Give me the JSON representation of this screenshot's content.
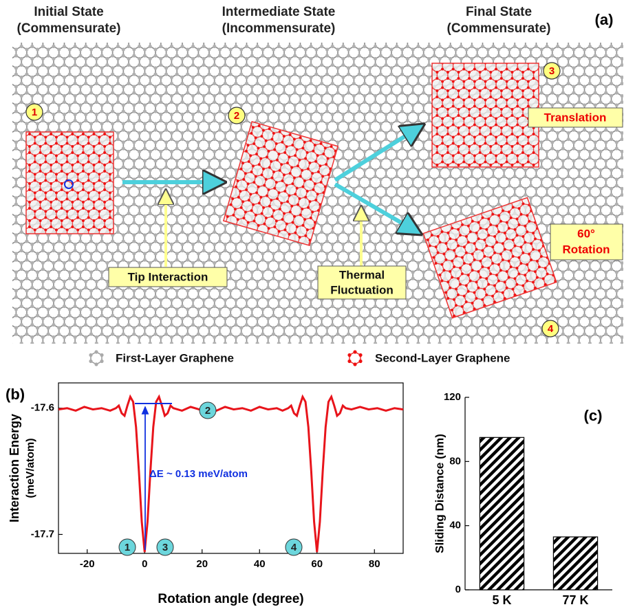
{
  "diagram": {
    "panel_label": "(a)",
    "states": [
      {
        "title": "Initial State",
        "subtitle": "(Commensurate)"
      },
      {
        "title": "Intermediate State",
        "subtitle": "(Incommensurate)"
      },
      {
        "title": "Final State",
        "subtitle": "(Commensurate)"
      }
    ],
    "markers": [
      "1",
      "2",
      "3",
      "4"
    ],
    "tip_label": "Tip Interaction",
    "thermal_label": [
      "Thermal",
      "Fluctuation"
    ],
    "translation_label": "Translation",
    "rotation_label": [
      "60°",
      "Rotation"
    ],
    "legend": [
      "First-Layer Graphene",
      "Second-Layer Graphene"
    ]
  },
  "chart_data": [
    {
      "type": "line",
      "panel_label": "(b)",
      "xlabel": "Rotation angle (degree)",
      "ylabel": [
        "Interaction Energy",
        "(meV/atom)"
      ],
      "x": [
        -30,
        -27,
        -24,
        -21,
        -18,
        -15,
        -12,
        -10,
        -9,
        -8,
        -7,
        -6,
        -5,
        -4,
        -3,
        -2,
        -1,
        0,
        1,
        2,
        3,
        4,
        5,
        6,
        7,
        8,
        9,
        10,
        13,
        16,
        19,
        22,
        25,
        28,
        31,
        34,
        37,
        40,
        43,
        46,
        48,
        50,
        51,
        52,
        53,
        54,
        55,
        56,
        57,
        58,
        59,
        60,
        61,
        62,
        63,
        64,
        65,
        66,
        67,
        68,
        69,
        70,
        72,
        75,
        78,
        81,
        84,
        87,
        90
      ],
      "series": [
        {
          "name": "Interaction Energy",
          "color": "#e8141b",
          "values": [
            -17.601,
            -17.6,
            -17.602,
            -17.599,
            -17.601,
            -17.6,
            -17.602,
            -17.6,
            -17.598,
            -17.604,
            -17.606,
            -17.598,
            -17.591,
            -17.595,
            -17.615,
            -17.65,
            -17.69,
            -17.714,
            -17.69,
            -17.65,
            -17.615,
            -17.595,
            -17.591,
            -17.598,
            -17.606,
            -17.604,
            -17.598,
            -17.6,
            -17.602,
            -17.599,
            -17.601,
            -17.6,
            -17.602,
            -17.599,
            -17.601,
            -17.6,
            -17.602,
            -17.599,
            -17.601,
            -17.6,
            -17.602,
            -17.6,
            -17.598,
            -17.604,
            -17.606,
            -17.598,
            -17.591,
            -17.595,
            -17.615,
            -17.65,
            -17.69,
            -17.714,
            -17.69,
            -17.65,
            -17.615,
            -17.595,
            -17.591,
            -17.598,
            -17.606,
            -17.604,
            -17.598,
            -17.6,
            -17.601,
            -17.599,
            -17.601,
            -17.6,
            -17.602,
            -17.6,
            -17.601
          ]
        }
      ],
      "xlim": [
        -30,
        90
      ],
      "xticks": [
        -20,
        0,
        20,
        40,
        60,
        80
      ],
      "ylim": [
        -17.715,
        -17.58
      ],
      "yticks": [
        -17.7,
        -17.6
      ],
      "annotation": "ΔE ~ 0.13 meV/atom",
      "point_labels": [
        "1",
        "2",
        "3",
        "4"
      ]
    },
    {
      "type": "bar",
      "panel_label": "(c)",
      "ylabel": "Sliding Distance (nm)",
      "categories": [
        "5 K",
        "77 K"
      ],
      "values": [
        95,
        33
      ],
      "color": "#e8141b",
      "ylim": [
        0,
        120
      ],
      "yticks": [
        0,
        40,
        80,
        120
      ]
    }
  ]
}
